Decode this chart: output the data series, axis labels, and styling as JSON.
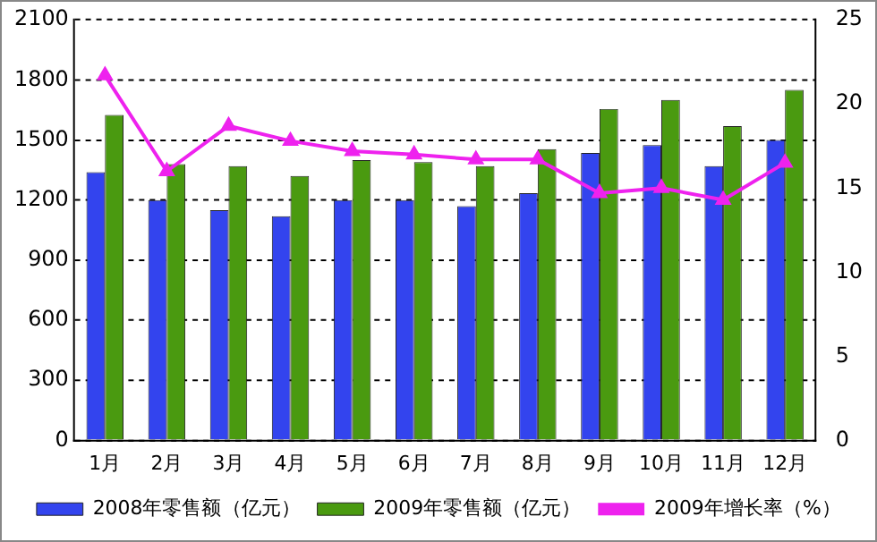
{
  "chart_data": {
    "type": "bar",
    "categories": [
      "1月",
      "2月",
      "3月",
      "4月",
      "5月",
      "6月",
      "7月",
      "8月",
      "9月",
      "10月",
      "11月",
      "12月"
    ],
    "series": [
      {
        "name": "2008年零售额（亿元）",
        "color": "#3344ee",
        "values": [
          1340,
          1200,
          1150,
          1120,
          1200,
          1200,
          1170,
          1235,
          1435,
          1475,
          1370,
          1500
        ]
      },
      {
        "name": "2009年零售额（亿元）",
        "color": "#4a9a10",
        "values": [
          1625,
          1380,
          1370,
          1320,
          1400,
          1390,
          1370,
          1455,
          1655,
          1700,
          1570,
          1750
        ]
      },
      {
        "name": "2009年增长率（%）",
        "type": "line",
        "axis": "y2",
        "color": "#ee22ee",
        "marker": "triangle",
        "values": [
          21.7,
          16.0,
          18.7,
          17.8,
          17.2,
          17.0,
          16.7,
          16.7,
          14.7,
          15.0,
          14.3,
          16.5
        ]
      }
    ],
    "ylim": [
      0,
      2100
    ],
    "yticks": [
      0,
      300,
      600,
      900,
      1200,
      1500,
      1800,
      2100
    ],
    "y2lim": [
      0,
      25
    ],
    "y2ticks": [
      0,
      5,
      10,
      15,
      20,
      25
    ],
    "grid": "y",
    "legend": "bottom"
  }
}
